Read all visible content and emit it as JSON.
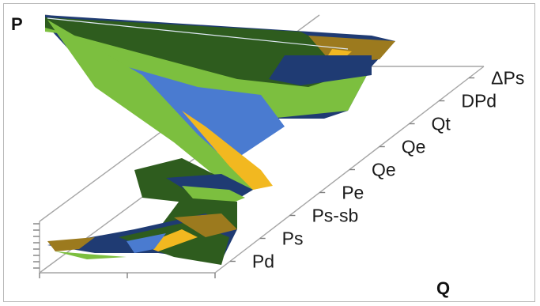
{
  "chart_data": {
    "type": "area",
    "variant": "3d-surface",
    "ylabel": "P",
    "xlabel": "Q",
    "depth_categories": [
      "Pd",
      "Ps",
      "Ps-sb",
      "Pe",
      "Qe",
      "Qe",
      "Qt",
      "DPd",
      "ΔPs"
    ],
    "band_colors": [
      "#1f3b73",
      "#2e5c1e",
      "#4a7bd0",
      "#f2b820",
      "#7cbf3f",
      "#9c7a1e"
    ],
    "grid": true,
    "legend": "none"
  }
}
